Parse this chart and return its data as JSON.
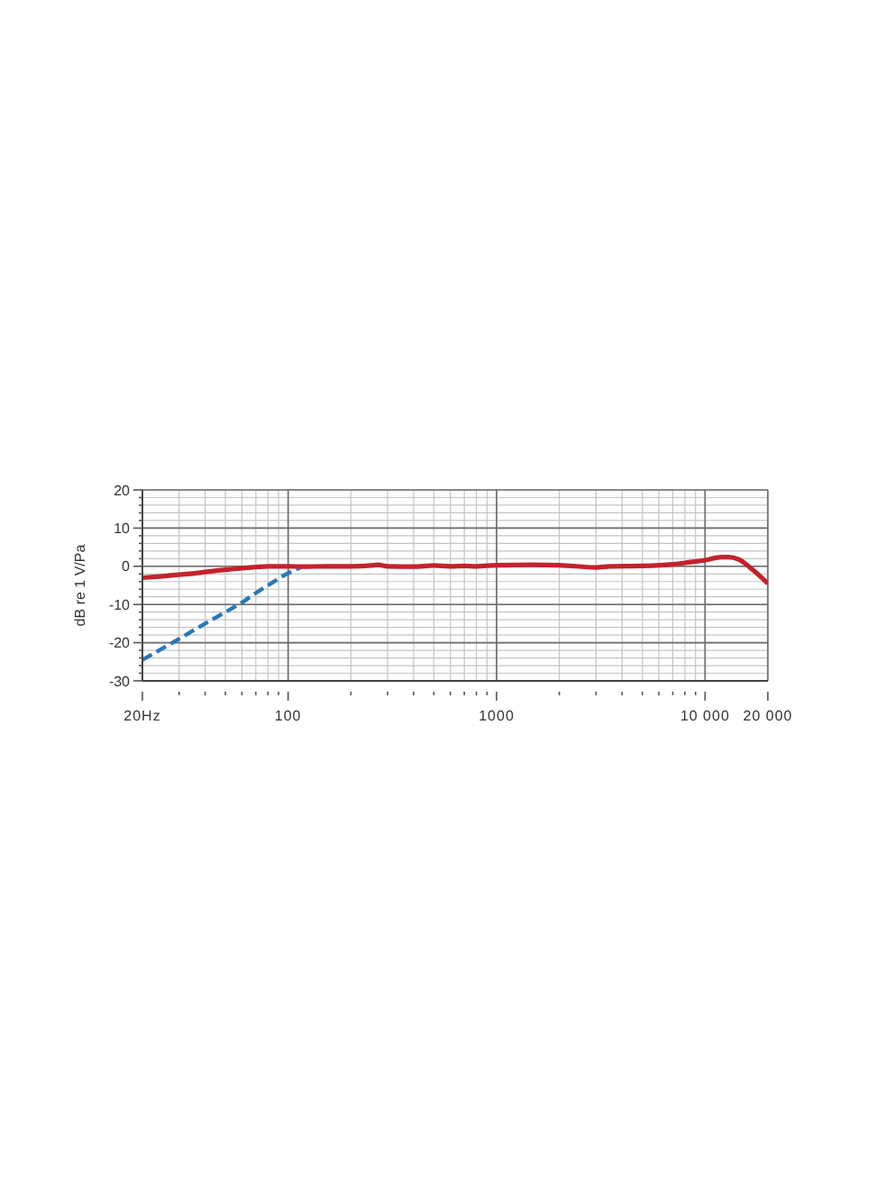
{
  "chart_data": {
    "type": "line",
    "ylabel": "dB re 1 V/Pa",
    "log": "x",
    "grid": true,
    "marker": "none",
    "xlim": [
      20,
      20000
    ],
    "xticks": [
      {
        "value": 20,
        "label": "20Hz"
      },
      {
        "value": 30,
        "label": null
      },
      {
        "value": 40,
        "label": null
      },
      {
        "value": 50,
        "label": null
      },
      {
        "value": 60,
        "label": null
      },
      {
        "value": 70,
        "label": null
      },
      {
        "value": 80,
        "label": null
      },
      {
        "value": 90,
        "label": null
      },
      100,
      {
        "value": 200,
        "label": null
      },
      {
        "value": 300,
        "label": null
      },
      {
        "value": 400,
        "label": null
      },
      {
        "value": 500,
        "label": null
      },
      {
        "value": 600,
        "label": null
      },
      {
        "value": 700,
        "label": null
      },
      {
        "value": 800,
        "label": null
      },
      {
        "value": 900,
        "label": null
      },
      1000,
      {
        "value": 2000,
        "label": null
      },
      {
        "value": 3000,
        "label": null
      },
      {
        "value": 4000,
        "label": null
      },
      {
        "value": 5000,
        "label": null
      },
      {
        "value": 6000,
        "label": null
      },
      {
        "value": 7000,
        "label": null
      },
      {
        "value": 8000,
        "label": null
      },
      {
        "value": 9000,
        "label": null
      },
      {
        "value": 10000,
        "label": "10 000"
      },
      {
        "value": 20000,
        "label": "20 000"
      }
    ],
    "ylim": [
      -30,
      20
    ],
    "yticks": [
      -30,
      {
        "value": -28,
        "label": null
      },
      {
        "value": -26,
        "label": null
      },
      {
        "value": -24,
        "label": null
      },
      {
        "value": -22,
        "label": null
      },
      -20,
      {
        "value": -18,
        "label": null
      },
      {
        "value": -16,
        "label": null
      },
      {
        "value": -14,
        "label": null
      },
      {
        "value": -12,
        "label": null
      },
      -10,
      {
        "value": -8,
        "label": null
      },
      {
        "value": -6,
        "label": null
      },
      {
        "value": -4,
        "label": null
      },
      {
        "value": -2,
        "label": null
      },
      0,
      {
        "value": 2,
        "label": null
      },
      {
        "value": 4,
        "label": null
      },
      {
        "value": 6,
        "label": null
      },
      {
        "value": 8,
        "label": null
      },
      10,
      {
        "value": 12,
        "label": null
      },
      {
        "value": 14,
        "label": null
      },
      {
        "value": 16,
        "label": null
      },
      {
        "value": 18,
        "label": null
      },
      20
    ],
    "series": [
      {
        "color": "#2a78b8",
        "line_style": "dashed",
        "x": [
          20,
          25,
          30,
          40,
          50,
          60,
          70,
          80,
          100,
          115
        ],
        "values": [
          -24.5,
          -21.5,
          -19,
          -15,
          -12,
          -9.5,
          -7,
          -5,
          -1.8,
          -0.3
        ]
      },
      {
        "color": "#c4222b",
        "line_style": "solid",
        "x": [
          20,
          25,
          30,
          35,
          40,
          50,
          60,
          70,
          80,
          100,
          120,
          150,
          200,
          250,
          270,
          300,
          400,
          500,
          600,
          700,
          800,
          1000,
          1500,
          2000,
          3000,
          3500,
          5000,
          7000,
          8000,
          10000,
          12000,
          13000,
          14500,
          17000,
          20000
        ],
        "values": [
          -3,
          -2.6,
          -2.2,
          -1.9,
          -1.5,
          -0.9,
          -0.5,
          -0.2,
          0,
          0,
          -0.1,
          0,
          0,
          0.2,
          0.4,
          0,
          -0.1,
          0.2,
          0,
          0.1,
          0,
          0.3,
          0.4,
          0.3,
          -0.3,
          0,
          0.1,
          0.5,
          0.9,
          1.6,
          2.4,
          2.4,
          1.8,
          -1,
          -4.5
        ]
      }
    ]
  }
}
